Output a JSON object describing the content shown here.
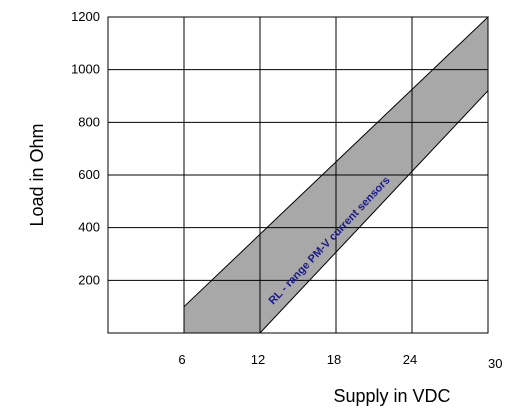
{
  "chart_data": {
    "type": "area",
    "xlabel": "Supply in VDC",
    "ylabel": "Load in Ohm",
    "xlim": [
      0,
      30
    ],
    "ylim": [
      0,
      1200
    ],
    "x_ticks": [
      6,
      12,
      18,
      24,
      30
    ],
    "y_ticks": [
      200,
      400,
      600,
      800,
      1000,
      1200
    ],
    "grid": true,
    "band": {
      "polygon": [
        [
          6,
          0
        ],
        [
          12,
          0
        ],
        [
          30,
          920
        ],
        [
          30,
          1200
        ],
        [
          6,
          100
        ]
      ]
    },
    "annotation": "RL - range PM-V current sensors",
    "colors": {
      "band_fill": "#a8a8a8",
      "annotation": "#1a1a8c",
      "grid": "#000000"
    }
  }
}
